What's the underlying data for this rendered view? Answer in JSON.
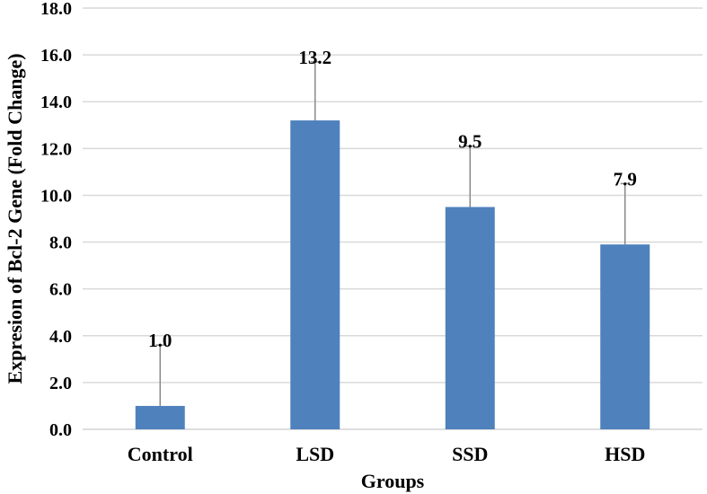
{
  "chart_data": {
    "type": "bar",
    "title": "",
    "xlabel": "Groups",
    "ylabel": "Expresion of Bcl-2 Gene (Fold Change)",
    "categories": [
      "Control",
      "LSD",
      "SSD",
      "HSD"
    ],
    "values": [
      1.0,
      13.2,
      9.5,
      7.9
    ],
    "error_upper": [
      3.6,
      15.7,
      12.1,
      10.5
    ],
    "data_labels": [
      "1.0",
      "13.2",
      "9.5",
      "7.9"
    ],
    "ylim": [
      0,
      18
    ],
    "yticks": [
      0,
      2,
      4,
      6,
      8,
      10,
      12,
      14,
      16,
      18
    ],
    "ytick_labels": [
      "0.0",
      "2.0",
      "4.0",
      "6.0",
      "8.0",
      "10.0",
      "12.0",
      "14.0",
      "16.0",
      "18.0"
    ],
    "grid": true,
    "bar_color": "#4F81BD",
    "error_color": "#8A8A8A",
    "grid_color": "#D9D9D9"
  }
}
